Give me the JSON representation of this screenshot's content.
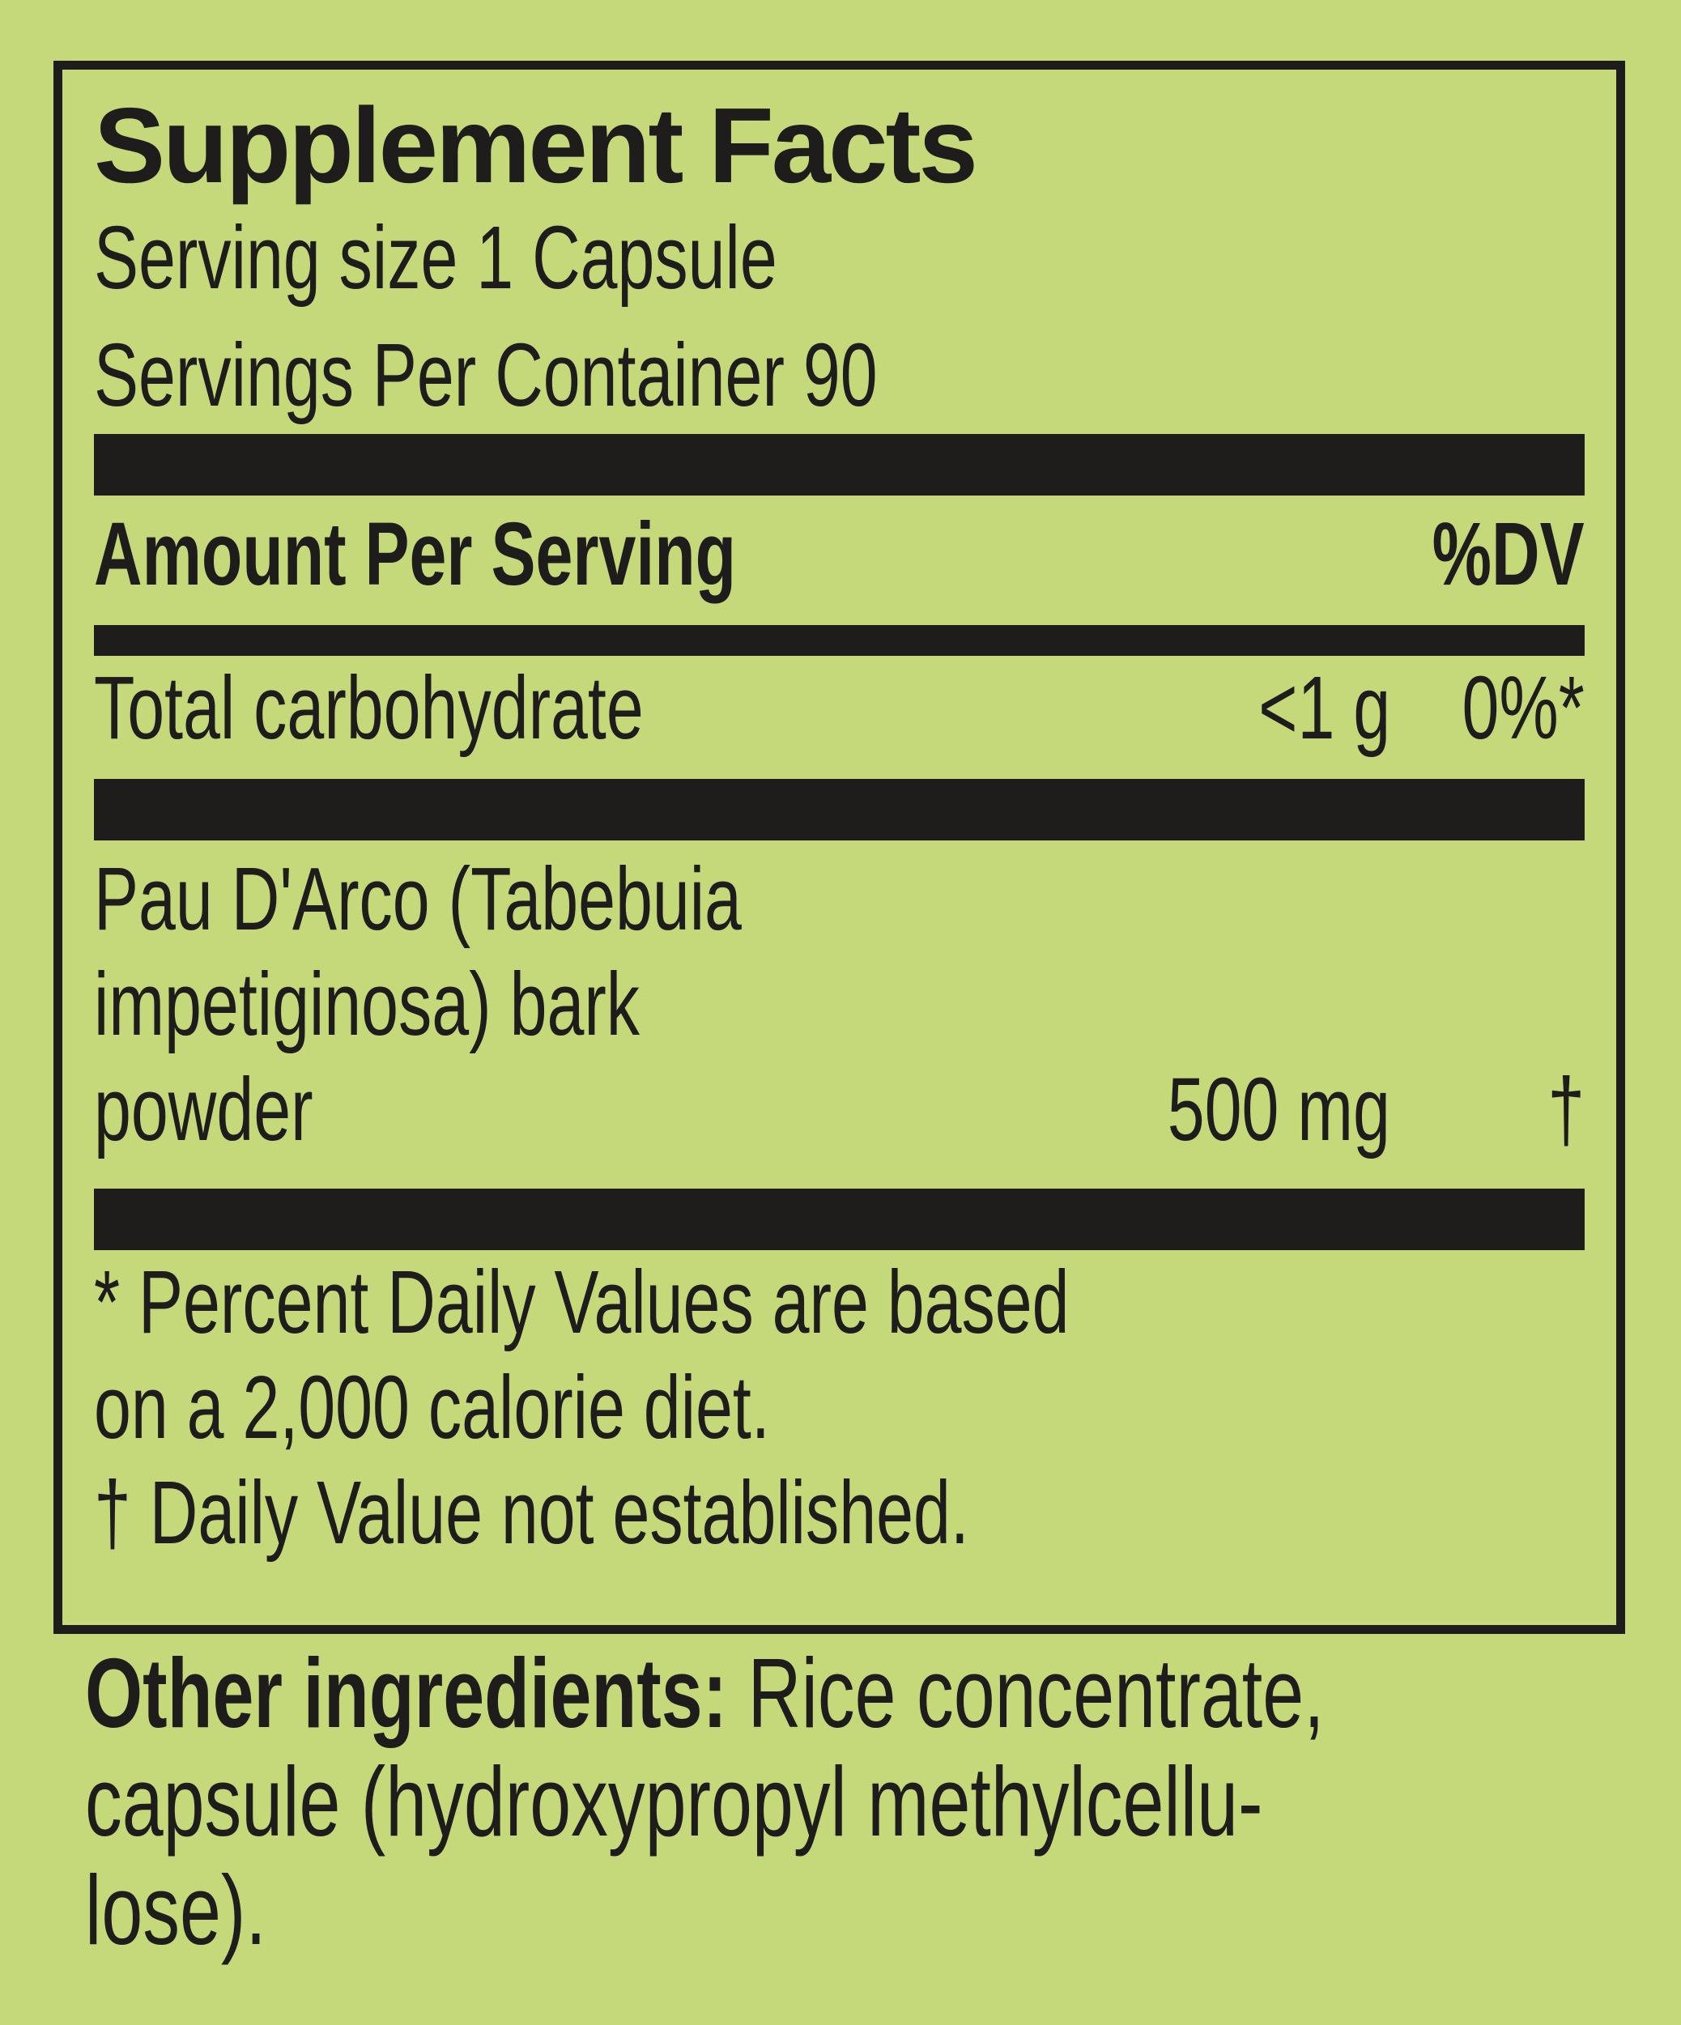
{
  "colors": {
    "background": "#c5d87a",
    "ink": "#1e1d1b"
  },
  "supplement_facts": {
    "title": "Supplement Facts",
    "serving_size": "Serving size 1 Capsule",
    "servings_per_container": "Servings Per Container 90",
    "columns": {
      "amount_header": "Amount Per Serving",
      "dv_header": "%DV"
    },
    "nutrients": [
      {
        "name": "Total carbohydrate",
        "amount": "<1 g",
        "dv": "0%*"
      }
    ],
    "ingredient": {
      "name_line1": "Pau D'Arco (Tabebuia",
      "name_line2": "impetiginosa) bark",
      "name_line3": "powder",
      "amount": "500 mg",
      "dv": "†"
    },
    "footnotes": [
      "* Percent Daily Values are based",
      "on a 2,000 calorie diet.",
      "† Daily Value not established."
    ]
  },
  "other_ingredients": {
    "label": "Other ingredients:",
    "line1_rest": " Rice concentrate,",
    "line2": "capsule (hydroxypropyl methylcellu-",
    "line3": "lose)."
  }
}
